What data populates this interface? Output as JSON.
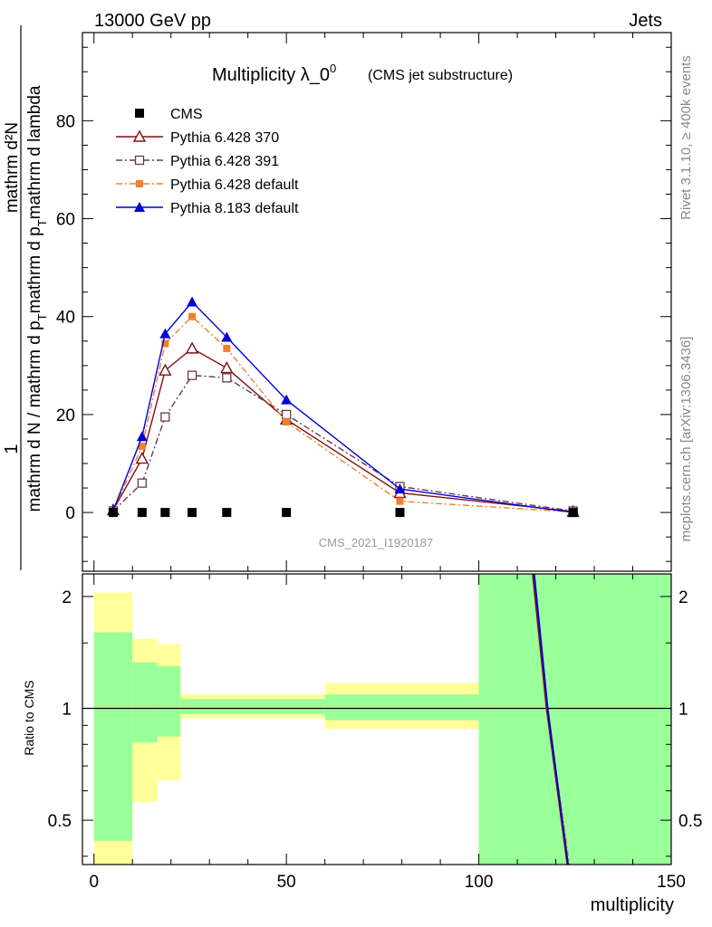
{
  "header": {
    "left": "13000 GeV pp",
    "right": "Jets"
  },
  "side": {
    "rivet": "Rivet 3.1.10, ≥ 400k events",
    "mcplots": "mcplots.cern.ch [arXiv:1306.3436]"
  },
  "chart_data": {
    "type": "line",
    "title": "Multiplicity λ_0",
    "title_sup": "0",
    "subtitle": "(CMS jet substructure)",
    "watermark": "CMS_2021_I1920187",
    "xlabel": "multiplicity",
    "ylabel_top": "1",
    "ylabel_bottom": "mathrm d N / mathrm d p_T mathrm d p_T mathrm d lambda",
    "ylabel_top_full": "mathrm d²N",
    "ylabel_bottom_lines": [
      "mathrm d N / mathrm d p",
      "T",
      "mathrm d p",
      "T",
      "mathrm d lambda"
    ],
    "ratio_ylabel": "Ratio to CMS",
    "xlim": [
      -3,
      150
    ],
    "ylim": [
      -12,
      98
    ],
    "ratio_ylim": [
      0.38,
      2.3
    ],
    "x_ticks": [
      "0",
      "50",
      "100",
      "150"
    ],
    "y_ticks": [
      "0",
      "20",
      "40",
      "60",
      "80"
    ],
    "ratio_ticks": [
      "0.5",
      "1",
      "2"
    ],
    "x": [
      5,
      12.5,
      18.5,
      25.5,
      34.5,
      50,
      79.5,
      124.5
    ],
    "series": [
      {
        "name": "CMS",
        "color": "#000000",
        "marker": "square-filled",
        "line": "none",
        "values": [
          0,
          0,
          0,
          0,
          0,
          0,
          0,
          0
        ]
      },
      {
        "name": "Pythia 6.428 370",
        "color": "#7f1010",
        "marker": "triangle-open",
        "line": "solid",
        "values": [
          0.5,
          11,
          29,
          33.5,
          29.5,
          19,
          4,
          0.2
        ]
      },
      {
        "name": "Pythia 6.428 391",
        "color": "#6b3a4e",
        "marker": "square-open",
        "line": "dashdot",
        "values": [
          0.3,
          6,
          19.5,
          28,
          27.5,
          20,
          5.3,
          0.3
        ]
      },
      {
        "name": "Pythia 6.428 default",
        "color": "#f08030",
        "marker": "square-filled-small",
        "line": "dashdot",
        "values": [
          0.4,
          13.5,
          34.5,
          40,
          33.5,
          18.5,
          2.3,
          0.1
        ]
      },
      {
        "name": "Pythia 8.183 default",
        "color": "#0000d8",
        "marker": "triangle-filled",
        "line": "solid",
        "values": [
          0.4,
          15.5,
          36.5,
          43,
          35.8,
          23,
          4.8,
          0
        ]
      }
    ],
    "ratio_bands": [
      {
        "x": [
          0,
          10
        ],
        "yellow": [
          0.38,
          2.05
        ],
        "green": [
          0.44,
          1.6
        ]
      },
      {
        "x": [
          10,
          16.5
        ],
        "yellow": [
          0.56,
          1.54
        ],
        "green": [
          0.81,
          1.33
        ]
      },
      {
        "x": [
          16.5,
          22.5
        ],
        "yellow": [
          0.64,
          1.49
        ],
        "green": [
          0.84,
          1.3
        ]
      },
      {
        "x": [
          22.5,
          60
        ],
        "yellow": [
          0.94,
          1.09
        ],
        "green": [
          0.965,
          1.06
        ]
      },
      {
        "x": [
          60,
          100
        ],
        "yellow": [
          0.88,
          1.17
        ],
        "green": [
          0.93,
          1.09
        ]
      },
      {
        "x": [
          100,
          150
        ],
        "yellow": [
          0.38,
          2.3
        ],
        "green": [
          0.38,
          2.3
        ]
      }
    ],
    "ratio_lines": [
      {
        "name": "Pythia 6.428 default",
        "color": "#f08030",
        "points": [
          [
            114.2,
            2.3
          ],
          [
            117.8,
            1.0
          ],
          [
            123.5,
            0.38
          ]
        ]
      },
      {
        "name": "Pythia 6.428 370",
        "color": "#7f1010",
        "points": [
          [
            114.0,
            2.3
          ],
          [
            117.6,
            1.0
          ],
          [
            123.0,
            0.38
          ]
        ]
      },
      {
        "name": "Pythia 8.183 default",
        "color": "#0000d8",
        "points": [
          [
            114.4,
            2.3
          ],
          [
            117.9,
            1.0
          ],
          [
            123.2,
            0.38
          ]
        ]
      }
    ]
  }
}
